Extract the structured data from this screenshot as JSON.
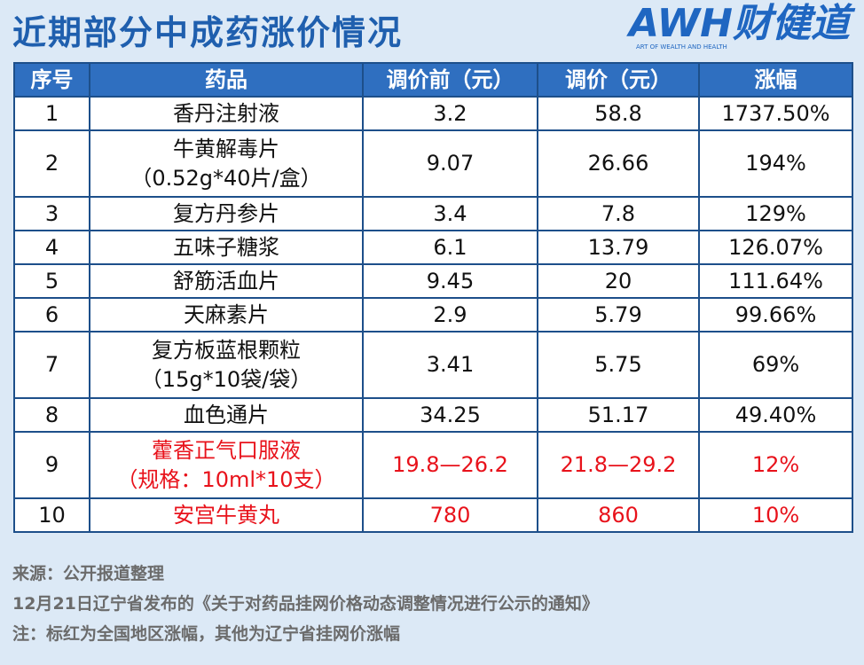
{
  "header": {
    "title": "近期部分中成药涨价情况",
    "logo": "AWH财健道",
    "logo_tagline": "ART OF WEALTH AND HEALTH"
  },
  "table": {
    "columns": [
      "序号",
      "药品",
      "调价前（元）",
      "调价（元）",
      "涨幅"
    ],
    "rows": [
      {
        "cells": [
          "1",
          [
            "香丹注射液"
          ],
          "3.2",
          "58.8",
          "1737.50%"
        ]
      },
      {
        "cells": [
          "2",
          [
            "牛黄解毒片",
            "（0.52g*40片/盒）"
          ],
          "9.07",
          "26.66",
          "194%"
        ]
      },
      {
        "cells": [
          "3",
          [
            "复方丹参片"
          ],
          "3.4",
          "7.8",
          "129%"
        ]
      },
      {
        "cells": [
          "4",
          [
            "五味子糖浆"
          ],
          "6.1",
          "13.79",
          "126.07%"
        ]
      },
      {
        "cells": [
          "5",
          [
            "舒筋活血片"
          ],
          "9.45",
          "20",
          "111.64%"
        ]
      },
      {
        "cells": [
          "6",
          [
            "天麻素片"
          ],
          "2.9",
          "5.79",
          "99.66%"
        ]
      },
      {
        "cells": [
          "7",
          [
            "复方板蓝根颗粒",
            "（15g*10袋/袋）"
          ],
          "3.41",
          "5.75",
          "69%"
        ]
      },
      {
        "cells": [
          "8",
          [
            "血色通片"
          ],
          "34.25",
          "51.17",
          "49.40%"
        ]
      },
      {
        "cells": [
          "9",
          [
            "藿香正气口服液",
            "（规格：10ml*10支）"
          ],
          "19.8—26.2",
          "21.8—29.2",
          "12%"
        ],
        "color": "#e8121b"
      },
      {
        "cells": [
          "10",
          [
            "安宫牛黄丸"
          ],
          "780",
          "860",
          "10%"
        ],
        "color": "#e8121b"
      }
    ]
  },
  "footer": {
    "notes": [
      "来源：公开报道整理",
      "12月21日辽宁省发布的《关于对药品挂网价格动态调整情况进行公示的通知》",
      "注：标红为全国地区涨幅，其他为辽宁省挂网价涨幅"
    ]
  }
}
